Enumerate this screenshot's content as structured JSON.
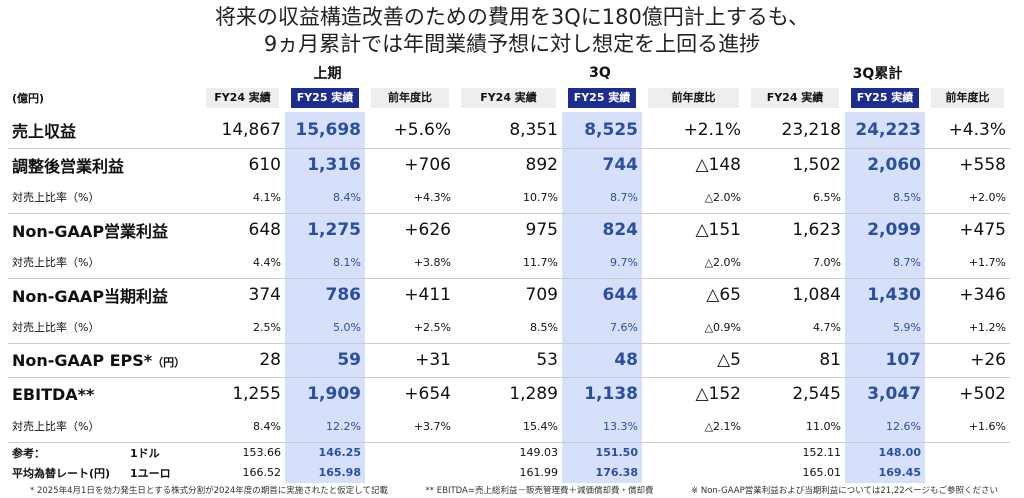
{
  "title": [
    "将来の収益構造改善のための費用を3Qに180億円計上するも、",
    "9ヵ月累計では年間業績予想に対し想定を上回る進捗"
  ],
  "table": {
    "unit": "(億円)",
    "groups": [
      "上期",
      "3Q",
      "3Q累計"
    ],
    "columns": [
      "FY24 実績",
      "FY25 実績",
      "前年度比"
    ],
    "rows": [
      {
        "label": "売上収益",
        "values": [
          "14,867",
          "15,698",
          "+5.6%",
          "8,351",
          "8,525",
          "+2.1%",
          "23,218",
          "24,223",
          "+4.3%"
        ]
      },
      {
        "label": "調整後営業利益",
        "values": [
          "610",
          "1,316",
          "+706",
          "892",
          "744",
          "△148",
          "1,502",
          "2,060",
          "+558"
        ],
        "margin": {
          "label": "対売上比率（%）",
          "values": [
            "4.1%",
            "8.4%",
            "+4.3%",
            "10.7%",
            "8.7%",
            "△2.0%",
            "6.5%",
            "8.5%",
            "+2.0%"
          ]
        }
      },
      {
        "label": "Non-GAAP営業利益",
        "values": [
          "648",
          "1,275",
          "+626",
          "975",
          "824",
          "△151",
          "1,623",
          "2,099",
          "+475"
        ],
        "margin": {
          "label": "対売上比率（%）",
          "values": [
            "4.4%",
            "8.1%",
            "+3.8%",
            "11.7%",
            "9.7%",
            "△2.0%",
            "7.0%",
            "8.7%",
            "+1.7%"
          ]
        }
      },
      {
        "label": "Non-GAAP当期利益",
        "values": [
          "374",
          "786",
          "+411",
          "709",
          "644",
          "△65",
          "1,084",
          "1,430",
          "+346"
        ],
        "margin": {
          "label": "対売上比率（%）",
          "values": [
            "2.5%",
            "5.0%",
            "+2.5%",
            "8.5%",
            "7.6%",
            "△0.9%",
            "4.7%",
            "5.9%",
            "+1.2%"
          ]
        }
      },
      {
        "label": "Non-GAAP EPS*",
        "unit": "（円）",
        "values": [
          "28",
          "59",
          "+31",
          "53",
          "48",
          "△5",
          "81",
          "107",
          "+26"
        ]
      },
      {
        "label": "EBITDA**",
        "values": [
          "1,255",
          "1,909",
          "+654",
          "1,289",
          "1,138",
          "△152",
          "2,545",
          "3,047",
          "+502"
        ],
        "margin": {
          "label": "対売上比率（%）",
          "values": [
            "8.4%",
            "12.2%",
            "+3.7%",
            "15.4%",
            "13.3%",
            "△2.1%",
            "11.0%",
            "12.6%",
            "+1.6%"
          ]
        }
      }
    ],
    "fx": [
      {
        "label": "参考：",
        "currency": "1ドル",
        "values": [
          "153.66",
          "146.25",
          "149.03",
          "151.50",
          "152.11",
          "148.00"
        ]
      },
      {
        "label": "平均為替レート(円)",
        "currency": "1ユーロ",
        "values": [
          "166.52",
          "165.98",
          "161.99",
          "176.38",
          "165.01",
          "169.45"
        ]
      }
    ]
  },
  "footnotes": [
    "* 2025年4月1日を効力発生日とする株式分割が2024年度の期首に実施されたと仮定して記載",
    "** EBITDA=売上総利益－販売管理費＋減価償却費・償却費",
    "※ Non-GAAP営業利益および当期利益については21,22ページもご参照ください"
  ]
}
